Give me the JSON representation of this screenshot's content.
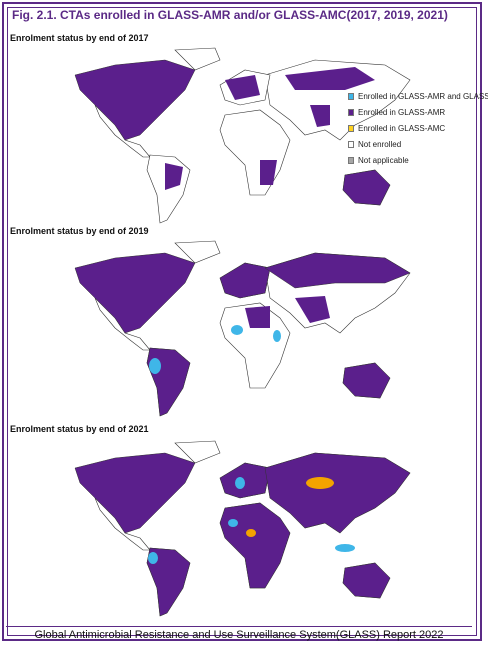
{
  "title": "Fig. 2.1. CTAs enrolled in GLASS-AMR and/or GLASS-AMC(2017, 2019, 2021)",
  "maps": [
    {
      "subtitle": "Enrolment status by end of 2017"
    },
    {
      "subtitle": "Enrolment status by end of 2019"
    },
    {
      "subtitle": "Enrolment status by end of 2021"
    }
  ],
  "legend": [
    {
      "label": "Enrolled in GLASS-AMR and GLASS-AMC",
      "color": "#3fb6e8"
    },
    {
      "label": "Enrolled in GLASS-AMR",
      "color": "#5b1f8c"
    },
    {
      "label": "Enrolled in GLASS-AMC",
      "color": "#ffd21f"
    },
    {
      "label": "Not enrolled",
      "color": "#ffffff"
    },
    {
      "label": "Not applicable",
      "color": "#a6a6a6"
    }
  ],
  "footer": "Global Antimicrobial Resistance and Use Surveillance System(GLASS) Report 2022"
}
